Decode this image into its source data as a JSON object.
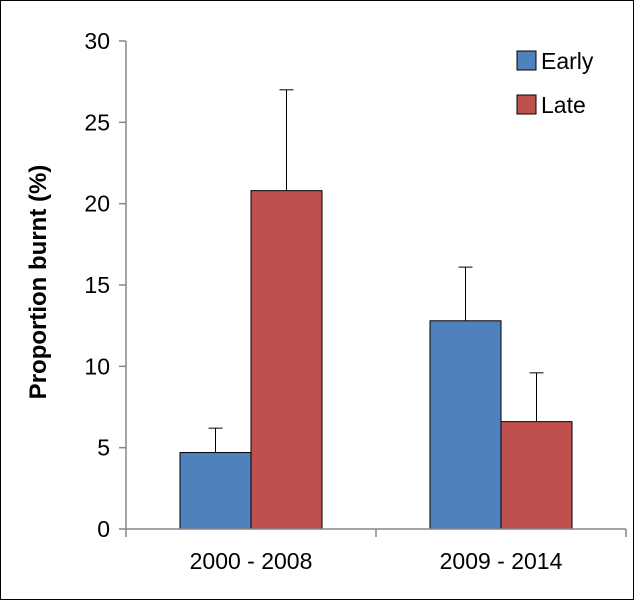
{
  "chart_data": {
    "type": "bar",
    "title": "",
    "xlabel": "",
    "ylabel": "Proportion burnt (%)",
    "ylim": [
      0,
      30
    ],
    "yticks": [
      0,
      5,
      10,
      15,
      20,
      25,
      30
    ],
    "categories": [
      "2000 - 2008",
      "2009 - 2014"
    ],
    "grid": false,
    "legend_position": "top-right",
    "series": [
      {
        "name": "Early",
        "color": "#4F81BD",
        "values": [
          4.7,
          12.8
        ],
        "errors": [
          1.5,
          3.3
        ]
      },
      {
        "name": "Late",
        "color": "#C0504D",
        "values": [
          20.8,
          6.6
        ],
        "errors": [
          6.2,
          3.0
        ]
      }
    ]
  }
}
